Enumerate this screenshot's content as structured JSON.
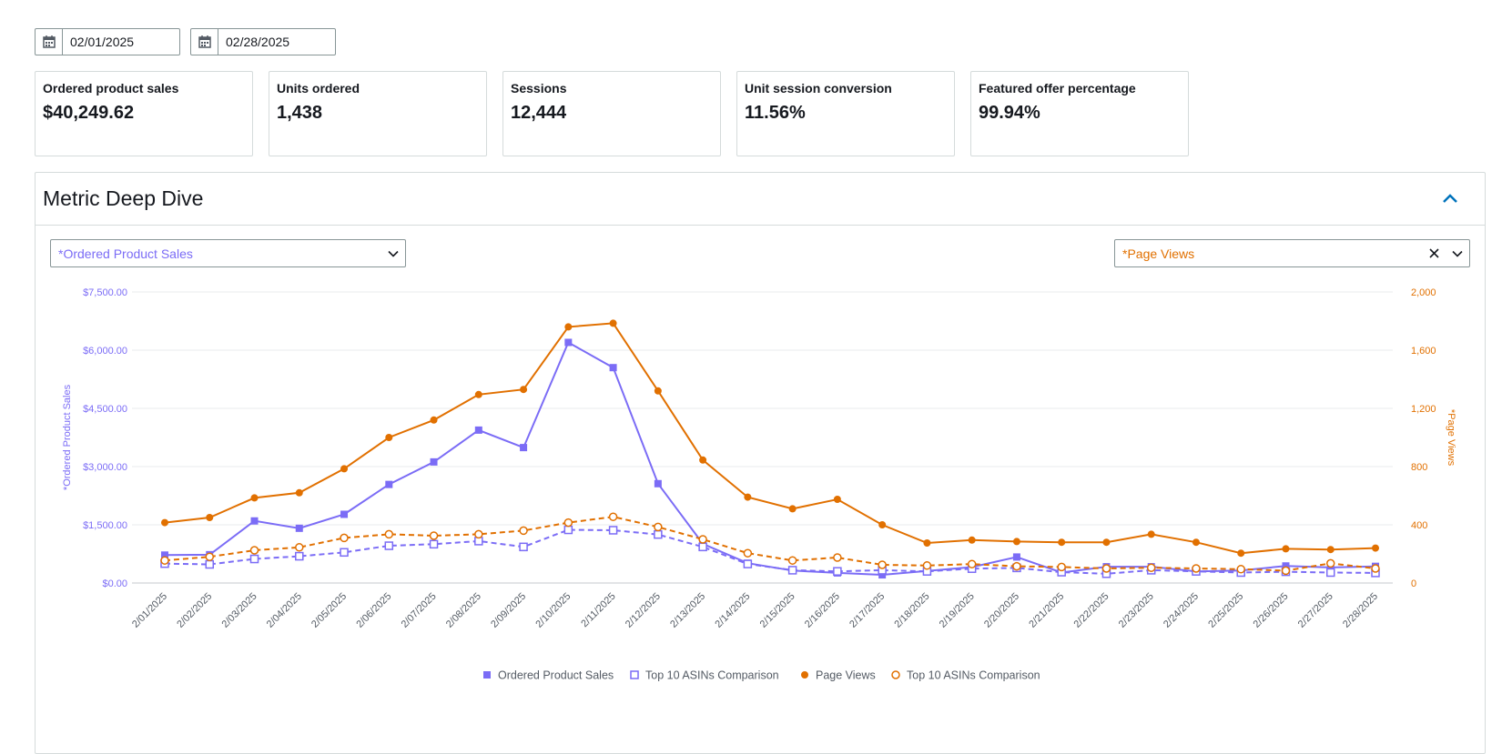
{
  "date_range": {
    "start": "02/01/2025",
    "end": "02/28/2025"
  },
  "metrics": [
    {
      "label": "Ordered product sales",
      "value": "$40,249.62"
    },
    {
      "label": "Units ordered",
      "value": "1,438"
    },
    {
      "label": "Sessions",
      "value": "12,444"
    },
    {
      "label": "Unit session conversion",
      "value": "11.56%"
    },
    {
      "label": "Featured offer percentage",
      "value": "99.94%"
    }
  ],
  "panel": {
    "title": "Metric Deep Dive"
  },
  "selectors": {
    "left": "*Ordered Product Sales",
    "right": "*Page Views"
  },
  "colors": {
    "left_axis": "#7b6cf6",
    "right_axis": "#e17000",
    "grid": "#e9ebed"
  },
  "chart_data": {
    "type": "line",
    "x": [
      "2/01/2025",
      "2/02/2025",
      "2/03/2025",
      "2/04/2025",
      "2/05/2025",
      "2/06/2025",
      "2/07/2025",
      "2/08/2025",
      "2/09/2025",
      "2/10/2025",
      "2/11/2025",
      "2/12/2025",
      "2/13/2025",
      "2/14/2025",
      "2/15/2025",
      "2/16/2025",
      "2/17/2025",
      "2/18/2025",
      "2/19/2025",
      "2/20/2025",
      "2/21/2025",
      "2/22/2025",
      "2/23/2025",
      "2/24/2025",
      "2/25/2025",
      "2/26/2025",
      "2/27/2025",
      "2/28/2025"
    ],
    "ylabel_left": "*Ordered Product Sales",
    "ylabel_right": "*Page Views",
    "ylim_left": [
      0,
      7500
    ],
    "ylim_right": [
      0,
      2000
    ],
    "yticks_left": [
      "$0.00",
      "$1,500.00",
      "$3,000.00",
      "$4,500.00",
      "$6,000.00",
      "$7,500.00"
    ],
    "yticks_right": [
      "0",
      "400",
      "800",
      "1,200",
      "1,600",
      "2,000"
    ],
    "grid": true,
    "legend_position": "bottom",
    "series": [
      {
        "name": "Ordered Product Sales",
        "axis": "left",
        "style": "solid",
        "marker": "square-filled",
        "color": "#7b6cf6",
        "values": [
          720,
          730,
          1600,
          1410,
          1770,
          2540,
          3120,
          3940,
          3490,
          6200,
          5550,
          2560,
          1010,
          510,
          320,
          260,
          210,
          310,
          410,
          670,
          270,
          420,
          420,
          300,
          320,
          440,
          400,
          430
        ]
      },
      {
        "name": "Top 10 ASINs Comparison",
        "axis": "left",
        "style": "dashed",
        "marker": "square-open",
        "color": "#7b6cf6",
        "values": [
          500,
          480,
          620,
          690,
          790,
          960,
          1000,
          1080,
          930,
          1370,
          1360,
          1250,
          930,
          490,
          330,
          300,
          330,
          300,
          370,
          390,
          280,
          240,
          330,
          300,
          270,
          290,
          270,
          260
        ]
      },
      {
        "name": "Page Views",
        "axis": "right",
        "style": "solid",
        "marker": "circle-filled",
        "color": "#e17000",
        "values": [
          415,
          450,
          585,
          620,
          785,
          1000,
          1120,
          1295,
          1330,
          1760,
          1785,
          1320,
          845,
          590,
          510,
          575,
          400,
          275,
          295,
          285,
          280,
          280,
          335,
          280,
          205,
          235,
          230,
          240
        ]
      },
      {
        "name": "Top 10 ASINs Comparison",
        "axis": "right",
        "style": "dashed",
        "marker": "circle-open",
        "color": "#e17000",
        "values": [
          155,
          180,
          225,
          245,
          310,
          335,
          325,
          335,
          360,
          415,
          455,
          385,
          300,
          205,
          155,
          175,
          125,
          120,
          130,
          115,
          110,
          100,
          105,
          100,
          95,
          85,
          135,
          100
        ]
      }
    ]
  }
}
